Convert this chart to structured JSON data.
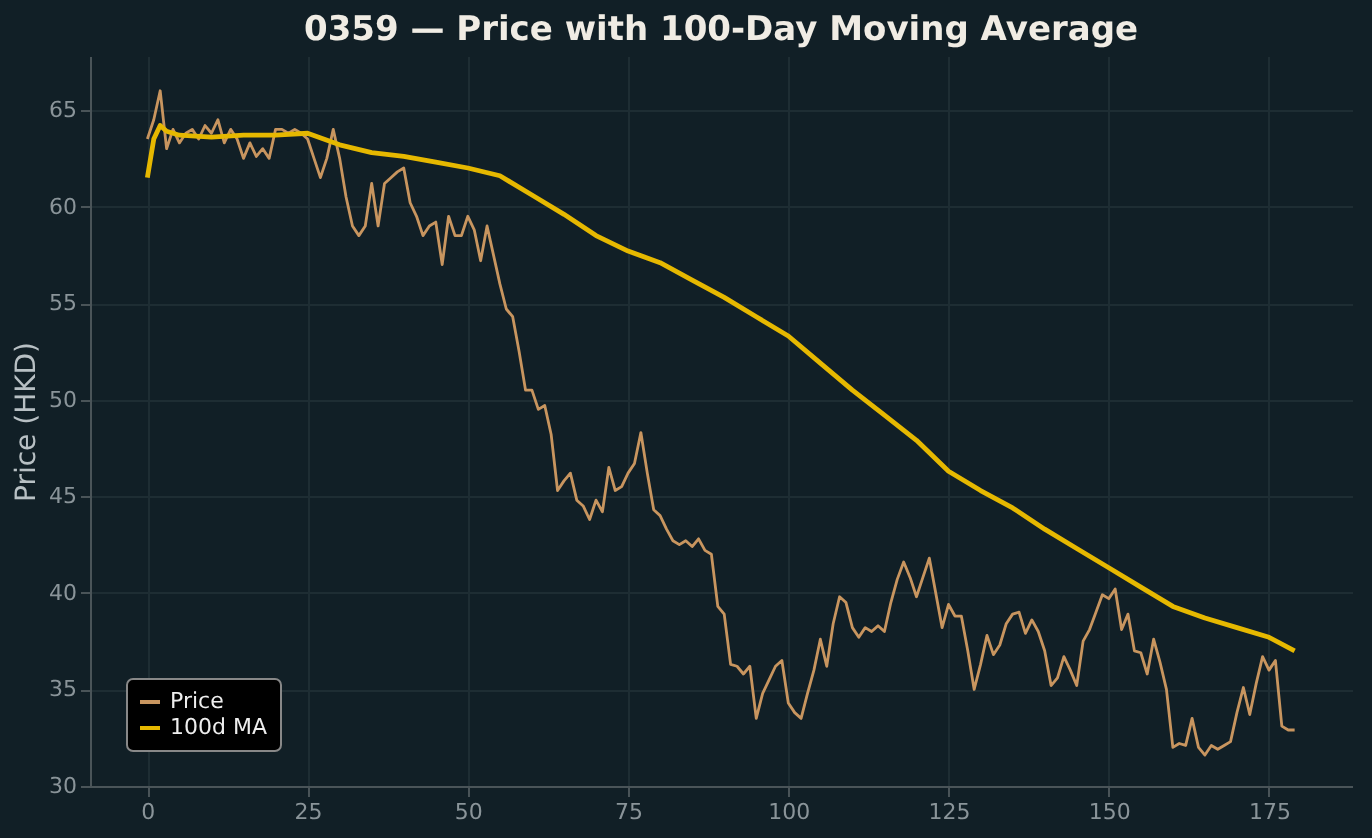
{
  "chart_data": {
    "type": "line",
    "title": "0359 — Price with 100-Day Moving Average",
    "ylabel": "Price (HKD)",
    "xlim": [
      -8.95,
      187.95
    ],
    "ylim": [
      30,
      67.8
    ],
    "xticks": [
      0,
      25,
      50,
      75,
      100,
      125,
      150,
      175
    ],
    "yticks": [
      30,
      35,
      40,
      45,
      50,
      55,
      60,
      65
    ],
    "grid": true,
    "legend": "bottom left",
    "line_style": "solid",
    "marker": "none",
    "series": [
      {
        "name": "Price",
        "color": "#c8955f",
        "x": [
          0,
          1,
          2,
          3,
          4,
          5,
          6,
          7,
          8,
          9,
          10,
          11,
          12,
          13,
          14,
          15,
          16,
          17,
          18,
          19,
          20,
          21,
          22,
          23,
          24,
          25,
          26,
          27,
          28,
          29,
          30,
          31,
          32,
          33,
          34,
          35,
          36,
          37,
          38,
          39,
          40,
          41,
          42,
          43,
          44,
          45,
          46,
          47,
          48,
          49,
          50,
          51,
          52,
          53,
          54,
          55,
          56,
          57,
          58,
          59,
          60,
          61,
          62,
          63,
          64,
          65,
          66,
          67,
          68,
          69,
          70,
          71,
          72,
          73,
          74,
          75,
          76,
          77,
          78,
          79,
          80,
          81,
          82,
          83,
          84,
          85,
          86,
          87,
          88,
          89,
          90,
          91,
          92,
          93,
          94,
          95,
          96,
          97,
          98,
          99,
          100,
          101,
          102,
          103,
          104,
          105,
          106,
          107,
          108,
          109,
          110,
          111,
          112,
          113,
          114,
          115,
          116,
          117,
          118,
          119,
          120,
          121,
          122,
          123,
          124,
          125,
          126,
          127,
          128,
          129,
          130,
          131,
          132,
          133,
          134,
          135,
          136,
          137,
          138,
          139,
          140,
          141,
          142,
          143,
          144,
          145,
          146,
          147,
          148,
          149,
          150,
          151,
          152,
          153,
          154,
          155,
          156,
          157,
          158,
          159,
          160,
          161,
          162,
          163,
          164,
          165,
          166,
          167,
          168,
          169,
          170,
          171,
          172,
          173,
          174,
          175,
          176,
          177,
          178,
          179
        ],
        "values": [
          63.5,
          64.5,
          66,
          63,
          64,
          63.3,
          63.8,
          64,
          63.5,
          64.2,
          63.8,
          64.5,
          63.3,
          64,
          63.5,
          62.5,
          63.3,
          62.6,
          63,
          62.5,
          64,
          64,
          63.8,
          64,
          63.8,
          63.5,
          62.5,
          61.5,
          62.5,
          64,
          62.5,
          60.5,
          59,
          58.5,
          59,
          61.2,
          59,
          61.2,
          61.5,
          61.8,
          62,
          60.2,
          59.5,
          58.5,
          59,
          59.2,
          57,
          59.5,
          58.5,
          58.5,
          59.5,
          58.8,
          57.2,
          59,
          57.5,
          56,
          54.7,
          54.3,
          52.5,
          50.5,
          50.5,
          49.5,
          49.7,
          48.2,
          45.3,
          45.8,
          46.2,
          44.8,
          44.5,
          43.8,
          44.8,
          44.2,
          46.5,
          45.3,
          45.5,
          46.2,
          46.7,
          48.3,
          46.2,
          44.3,
          44,
          43.3,
          42.7,
          42.5,
          42.7,
          42.4,
          42.8,
          42.2,
          42,
          39.3,
          38.9,
          36.3,
          36.2,
          35.8,
          36.2,
          33.5,
          34.8,
          35.5,
          36.2,
          36.5,
          34.3,
          33.8,
          33.5,
          34.8,
          36,
          37.6,
          36.2,
          38.4,
          39.8,
          39.5,
          38.2,
          37.7,
          38.2,
          38,
          38.3,
          38,
          39.5,
          40.7,
          41.6,
          40.8,
          39.8,
          40.8,
          41.8,
          40,
          38.2,
          39.4,
          38.8,
          38.8,
          37,
          35,
          36.3,
          37.8,
          36.8,
          37.3,
          38.4,
          38.9,
          39,
          37.9,
          38.6,
          38,
          37,
          35.2,
          35.6,
          36.7,
          36,
          35.2,
          37.5,
          38.1,
          39,
          39.9,
          39.7,
          40.2,
          38.1,
          38.9,
          37,
          36.9,
          35.8,
          37.6,
          36.4,
          35,
          32,
          32.2,
          32.1,
          33.5,
          32,
          31.6,
          32.1,
          31.9,
          32.1,
          32.3,
          33.8,
          35.1,
          33.7,
          35.3,
          36.7,
          36,
          36.5,
          33.1,
          32.9,
          32.9
        ]
      },
      {
        "name": "100d MA",
        "color": "#e6b800",
        "x": [
          0,
          1,
          2,
          3,
          5,
          10,
          15,
          20,
          25,
          30,
          35,
          40,
          45,
          50,
          55,
          60,
          65,
          70,
          75,
          80,
          85,
          90,
          95,
          100,
          105,
          110,
          115,
          120,
          125,
          130,
          135,
          140,
          145,
          150,
          155,
          160,
          165,
          170,
          175,
          179
        ],
        "values": [
          61.5,
          63.5,
          64.2,
          63.9,
          63.7,
          63.6,
          63.7,
          63.7,
          63.8,
          63.2,
          62.8,
          62.6,
          62.3,
          62,
          61.6,
          60.6,
          59.6,
          58.5,
          57.7,
          57.1,
          56.2,
          55.3,
          54.3,
          53.3,
          51.9,
          50.5,
          49.2,
          47.9,
          46.3,
          45.3,
          44.4,
          43.3,
          42.3,
          41.3,
          40.3,
          39.3,
          38.7,
          38.2,
          37.7,
          37
        ]
      }
    ]
  }
}
